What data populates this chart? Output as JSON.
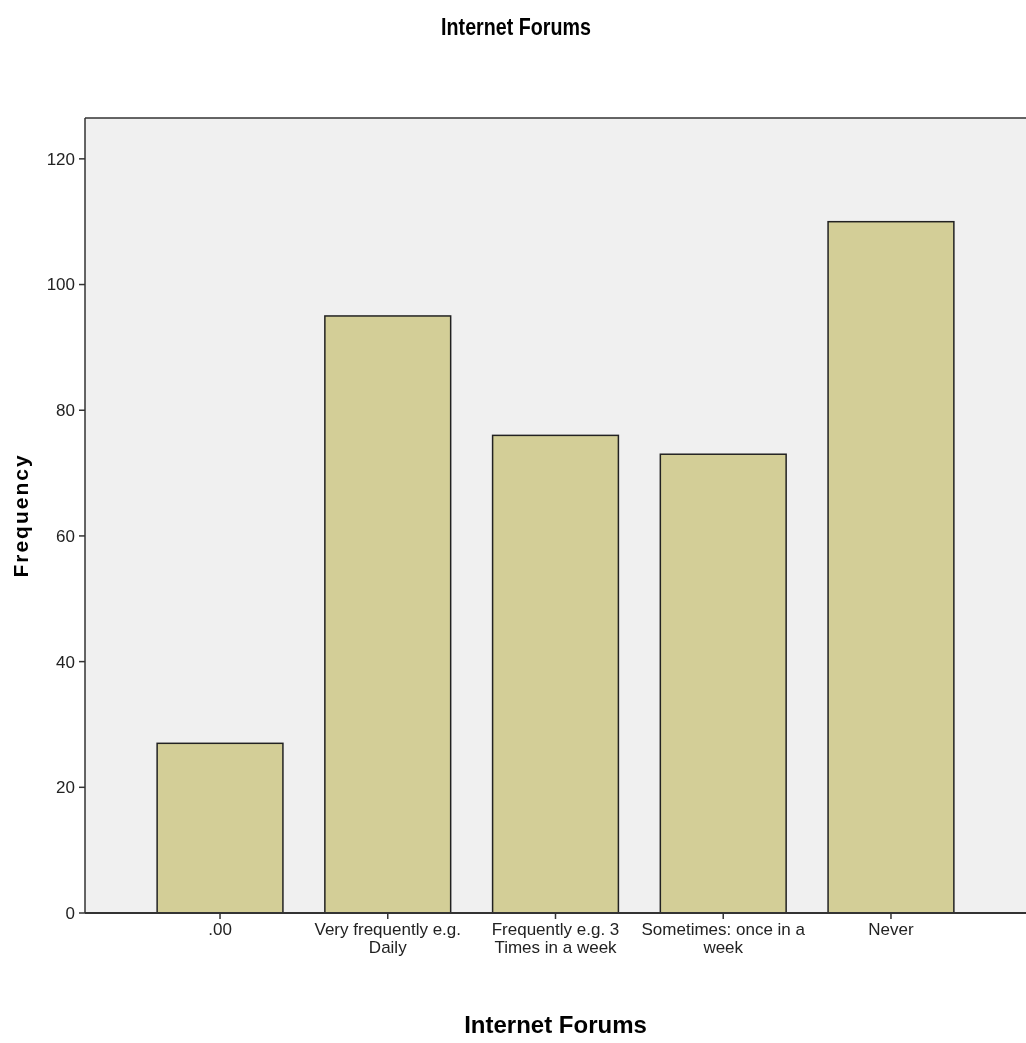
{
  "chart_data": {
    "type": "bar",
    "title": "Internet Forums",
    "xlabel": "Internet Forums",
    "ylabel": "Frequency",
    "categories": [
      ".00",
      "Very frequently e.g. Daily",
      "Frequently e.g. 3 Times in a week",
      "Sometimes: once in a week",
      "Never"
    ],
    "values": [
      27,
      95,
      76,
      73,
      110
    ],
    "color": "#d3ce97",
    "ylim": [
      0,
      126.5
    ],
    "yticks": [
      0,
      20,
      40,
      60,
      80,
      100,
      120
    ]
  }
}
